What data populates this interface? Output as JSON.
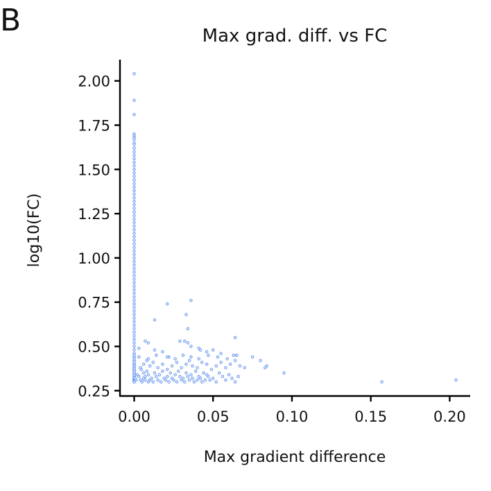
{
  "panel_label": "B",
  "chart_data": {
    "type": "scatter",
    "title": "Max grad. diff. vs FC",
    "xlabel": "Max gradient difference",
    "ylabel": "log10(FC)",
    "xlim": [
      -0.009,
      0.213
    ],
    "ylim": [
      0.22,
      2.12
    ],
    "xticks": [
      0.0,
      0.05,
      0.1,
      0.15,
      0.2
    ],
    "xtick_labels": [
      "0.00",
      "0.05",
      "0.10",
      "0.15",
      "0.20"
    ],
    "yticks": [
      0.25,
      0.5,
      0.75,
      1.0,
      1.25,
      1.5,
      1.75,
      2.0
    ],
    "ytick_labels": [
      "0.25",
      "0.50",
      "0.75",
      "1.00",
      "1.25",
      "1.50",
      "1.75",
      "2.00"
    ],
    "grid": false,
    "marker_color": "#6495ED",
    "series": [
      {
        "x": [
          0,
          0,
          0,
          0,
          0,
          0,
          0,
          0,
          0,
          0,
          0,
          0,
          0,
          0,
          0,
          0,
          0,
          0,
          0,
          0,
          0,
          0,
          0,
          0,
          0,
          0,
          0,
          0,
          0,
          0,
          0,
          0,
          0,
          0,
          0,
          0,
          0,
          0,
          0,
          0,
          0,
          0,
          0,
          0,
          0,
          0,
          0,
          0,
          0,
          0,
          0,
          0,
          0,
          0,
          0,
          0,
          0,
          0,
          0,
          0,
          0,
          0,
          0,
          0,
          0,
          0,
          0,
          0,
          0,
          0,
          0,
          0,
          0,
          0,
          0,
          0,
          0,
          0,
          0,
          0,
          0,
          0,
          0,
          0,
          0,
          0,
          0,
          0,
          0,
          0,
          0,
          0,
          0,
          0,
          0,
          0,
          0,
          0,
          0,
          0,
          0.0005,
          0.0012,
          0.002,
          0.003,
          0.004,
          0.0045,
          0.005,
          0.006,
          0.006,
          0.007,
          0.007,
          0.008,
          0.009,
          0.009,
          0.01,
          0.011,
          0.012,
          0.013,
          0.014,
          0.015,
          0.016,
          0.017,
          0.018,
          0.019,
          0.02,
          0.021,
          0.022,
          0.023,
          0.024,
          0.025,
          0.026,
          0.027,
          0.028,
          0.029,
          0.03,
          0.031,
          0.032,
          0.033,
          0.034,
          0.035,
          0.036,
          0.037,
          0.038,
          0.039,
          0.04,
          0.041,
          0.042,
          0.043,
          0.044,
          0.045,
          0.046,
          0.047,
          0.048,
          0.05,
          0.052,
          0.054,
          0.056,
          0.058,
          0.06,
          0.062,
          0.064,
          0.066,
          0.004,
          0.006,
          0.008,
          0.01,
          0.012,
          0.015,
          0.018,
          0.021,
          0.024,
          0.027,
          0.03,
          0.033,
          0.035,
          0.037,
          0.04,
          0.043,
          0.046,
          0.049,
          0.052,
          0.055,
          0.058,
          0.061,
          0.064,
          0.067,
          0.07,
          0.003,
          0.009,
          0.014,
          0.022,
          0.026,
          0.031,
          0.036,
          0.041,
          0.047,
          0.053,
          0.059,
          0.065,
          0.075,
          0.08,
          0.083,
          0.084,
          0.003,
          0.007,
          0.009,
          0.013,
          0.018,
          0.021,
          0.029,
          0.032,
          0.034,
          0.036,
          0.041,
          0.042,
          0.046,
          0.05,
          0.055,
          0.063,
          0.064,
          0.065,
          0.013,
          0.021,
          0.033,
          0.034,
          0.036,
          0.095,
          0.157,
          0.204
        ],
        "y": [
          2.04,
          1.89,
          1.81,
          1.7,
          1.69,
          1.68,
          1.67,
          1.65,
          1.64,
          1.62,
          1.6,
          1.58,
          1.56,
          1.54,
          1.52,
          1.5,
          1.48,
          1.46,
          1.44,
          1.42,
          1.4,
          1.38,
          1.36,
          1.34,
          1.32,
          1.3,
          1.28,
          1.26,
          1.24,
          1.22,
          1.2,
          1.18,
          1.16,
          1.14,
          1.12,
          1.1,
          1.08,
          1.06,
          1.04,
          1.02,
          1.0,
          0.98,
          0.96,
          0.94,
          0.92,
          0.9,
          0.88,
          0.86,
          0.84,
          0.82,
          0.8,
          0.78,
          0.76,
          0.74,
          0.72,
          0.7,
          0.68,
          0.66,
          0.64,
          0.62,
          0.6,
          0.58,
          0.56,
          0.54,
          0.52,
          0.5,
          0.48,
          0.46,
          0.44,
          0.42,
          0.4,
          0.39,
          0.38,
          0.37,
          0.36,
          0.35,
          0.34,
          0.33,
          0.32,
          0.31,
          0.305,
          0.3,
          0.45,
          0.43,
          0.41,
          0.395,
          0.385,
          0.375,
          0.365,
          0.355,
          0.345,
          0.335,
          0.325,
          0.315,
          0.31,
          0.308,
          0.306,
          0.304,
          0.302,
          0.3,
          0.32,
          0.31,
          0.34,
          0.33,
          0.31,
          0.37,
          0.3,
          0.32,
          0.35,
          0.31,
          0.33,
          0.36,
          0.3,
          0.34,
          0.31,
          0.32,
          0.3,
          0.35,
          0.33,
          0.31,
          0.34,
          0.3,
          0.36,
          0.32,
          0.31,
          0.33,
          0.3,
          0.35,
          0.32,
          0.31,
          0.34,
          0.3,
          0.36,
          0.33,
          0.31,
          0.32,
          0.3,
          0.35,
          0.33,
          0.31,
          0.34,
          0.32,
          0.3,
          0.36,
          0.31,
          0.33,
          0.32,
          0.3,
          0.35,
          0.31,
          0.34,
          0.33,
          0.31,
          0.32,
          0.3,
          0.35,
          0.33,
          0.31,
          0.34,
          0.32,
          0.3,
          0.33,
          0.38,
          0.4,
          0.42,
          0.39,
          0.41,
          0.38,
          0.4,
          0.37,
          0.39,
          0.41,
          0.38,
          0.4,
          0.42,
          0.39,
          0.38,
          0.41,
          0.4,
          0.37,
          0.39,
          0.41,
          0.38,
          0.4,
          0.42,
          0.39,
          0.38,
          0.44,
          0.43,
          0.45,
          0.44,
          0.43,
          0.45,
          0.44,
          0.43,
          0.45,
          0.44,
          0.43,
          0.45,
          0.44,
          0.42,
          0.38,
          0.39,
          0.49,
          0.53,
          0.52,
          0.48,
          0.47,
          0.44,
          0.53,
          0.53,
          0.52,
          0.5,
          0.49,
          0.48,
          0.47,
          0.48,
          0.46,
          0.45,
          0.55,
          0.45,
          0.65,
          0.74,
          0.68,
          0.6,
          0.76,
          0.35,
          0.3,
          0.31
        ]
      }
    ]
  }
}
